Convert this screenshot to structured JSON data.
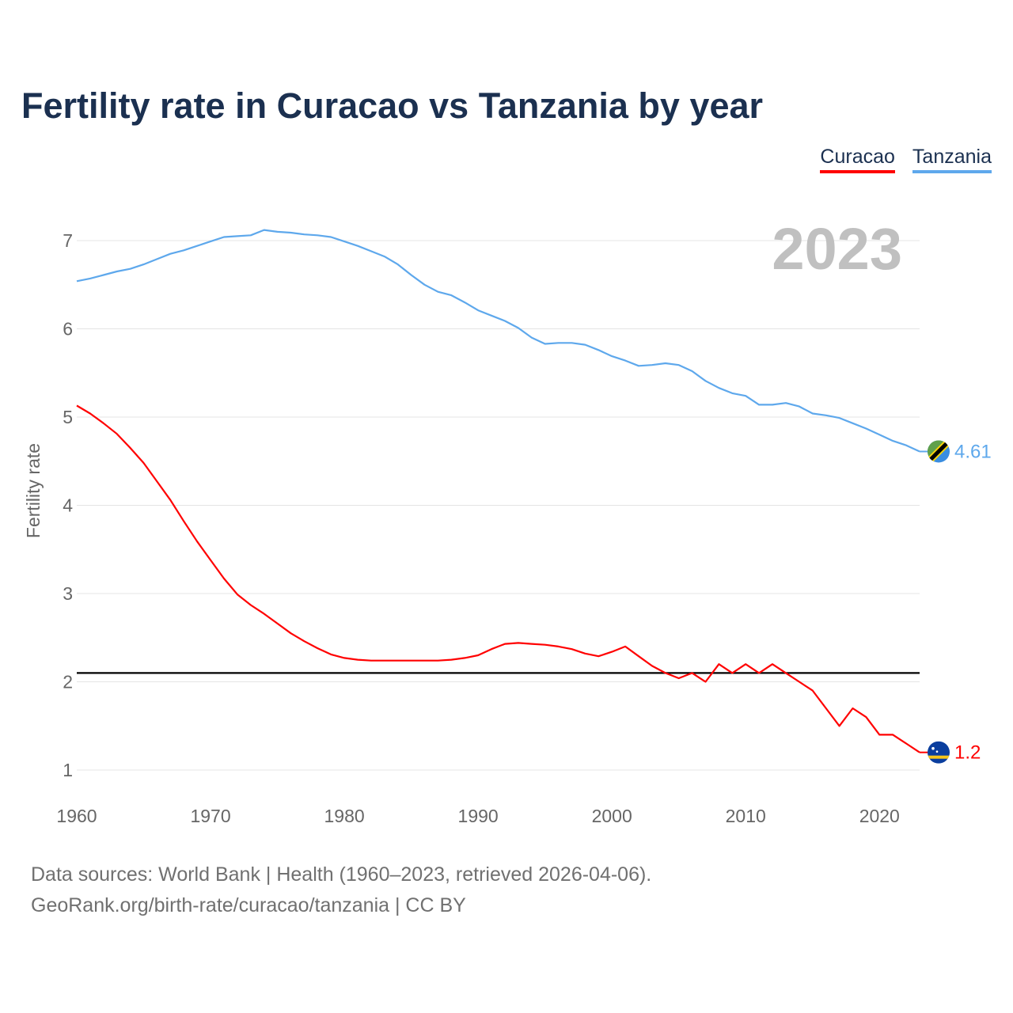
{
  "chart_data": {
    "type": "line",
    "title": "Fertility rate in Curacao vs Tanzania by year",
    "xlabel": "",
    "ylabel": "Fertility rate",
    "xlim": [
      1960,
      2023
    ],
    "ylim": [
      1,
      7
    ],
    "x_ticks": [
      1960,
      1970,
      1980,
      1990,
      2000,
      2010,
      2020
    ],
    "y_ticks": [
      1,
      2,
      3,
      4,
      5,
      6,
      7
    ],
    "grid": true,
    "legend_position": "top-right",
    "year_label": "2023",
    "reference_line": {
      "value": 2.1,
      "color": "#000000"
    },
    "x": [
      1960,
      1961,
      1962,
      1963,
      1964,
      1965,
      1966,
      1967,
      1968,
      1969,
      1970,
      1971,
      1972,
      1973,
      1974,
      1975,
      1976,
      1977,
      1978,
      1979,
      1980,
      1981,
      1982,
      1983,
      1984,
      1985,
      1986,
      1987,
      1988,
      1989,
      1990,
      1991,
      1992,
      1993,
      1994,
      1995,
      1996,
      1997,
      1998,
      1999,
      2000,
      2001,
      2002,
      2003,
      2004,
      2005,
      2006,
      2007,
      2008,
      2009,
      2010,
      2011,
      2012,
      2013,
      2014,
      2015,
      2016,
      2017,
      2018,
      2019,
      2020,
      2021,
      2022,
      2023
    ],
    "series": [
      {
        "name": "Curacao",
        "color": "#ff0000",
        "end_label": "1.2",
        "values": [
          5.13,
          5.04,
          4.93,
          4.81,
          4.65,
          4.48,
          4.27,
          4.06,
          3.82,
          3.59,
          3.38,
          3.17,
          2.99,
          2.87,
          2.77,
          2.66,
          2.55,
          2.46,
          2.38,
          2.31,
          2.27,
          2.25,
          2.24,
          2.24,
          2.24,
          2.24,
          2.24,
          2.24,
          2.25,
          2.27,
          2.3,
          2.37,
          2.43,
          2.44,
          2.43,
          2.42,
          2.4,
          2.37,
          2.32,
          2.29,
          2.34,
          2.4,
          2.29,
          2.18,
          2.1,
          2.04,
          2.1,
          2.0,
          2.2,
          2.1,
          2.2,
          2.1,
          2.2,
          2.1,
          2.0,
          1.9,
          1.7,
          1.5,
          1.7,
          1.6,
          1.4,
          1.4,
          1.3,
          1.2
        ]
      },
      {
        "name": "Tanzania",
        "color": "#5ea8ec",
        "end_label": "4.61",
        "values": [
          6.54,
          6.57,
          6.61,
          6.65,
          6.68,
          6.73,
          6.79,
          6.85,
          6.89,
          6.94,
          6.99,
          7.04,
          7.05,
          7.06,
          7.12,
          7.1,
          7.09,
          7.07,
          7.06,
          7.04,
          6.99,
          6.94,
          6.88,
          6.82,
          6.73,
          6.61,
          6.5,
          6.42,
          6.38,
          6.3,
          6.21,
          6.15,
          6.09,
          6.01,
          5.9,
          5.83,
          5.84,
          5.84,
          5.82,
          5.76,
          5.69,
          5.64,
          5.58,
          5.59,
          5.61,
          5.59,
          5.52,
          5.41,
          5.33,
          5.27,
          5.24,
          5.14,
          5.14,
          5.16,
          5.12,
          5.04,
          5.02,
          4.99,
          4.93,
          4.87,
          4.8,
          4.73,
          4.68,
          4.61
        ]
      }
    ]
  },
  "footer": {
    "line1": "Data sources: World Bank | Health (1960–2023, retrieved 2026-04-06).",
    "line2": "GeoRank.org/birth-rate/curacao/tanzania | CC BY"
  }
}
